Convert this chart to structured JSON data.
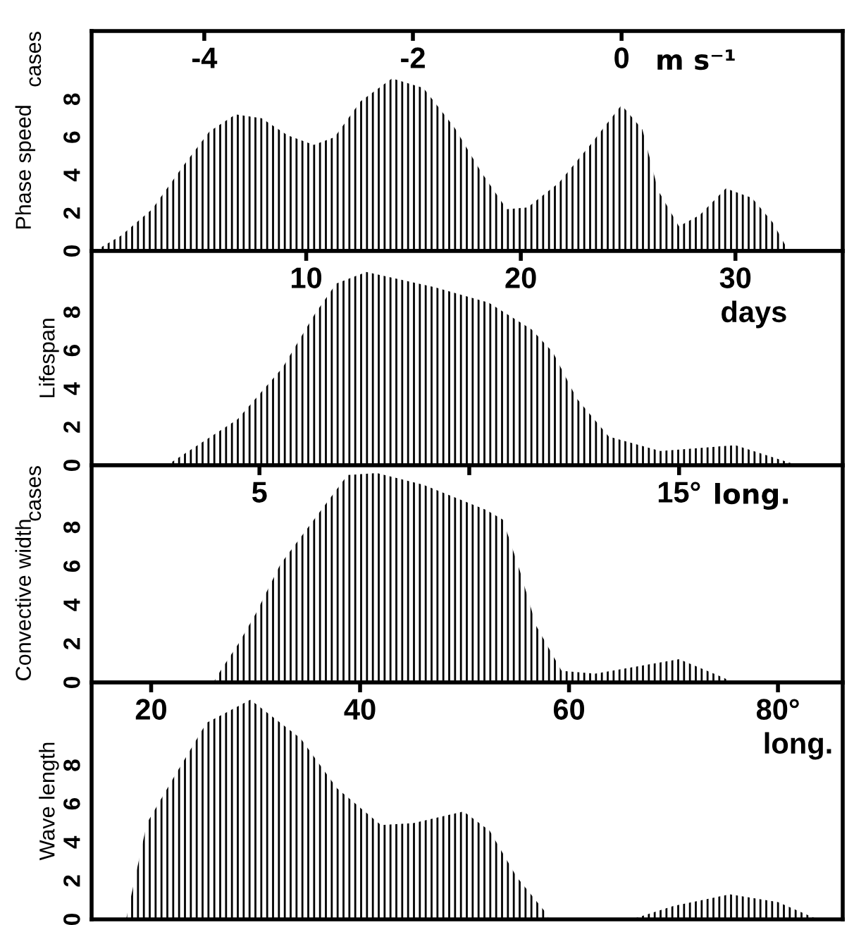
{
  "chart_data": [
    {
      "type": "area",
      "ylabel": "Phase speed",
      "annotations": [
        "cases",
        "m s⁻¹"
      ],
      "xlim": [
        -5.08,
        2.12
      ],
      "ylim": [
        0,
        11.6
      ],
      "xticks": [
        -4,
        -2,
        0
      ],
      "yticks": [
        0,
        2,
        4,
        6,
        8
      ],
      "color": "#000000",
      "x": [
        -5.05,
        -4.8,
        -4.5,
        -4.2,
        -3.95,
        -3.7,
        -3.45,
        -3.2,
        -2.95,
        -2.75,
        -2.5,
        -2.2,
        -1.9,
        -1.6,
        -1.35,
        -1.1,
        -0.9,
        -0.6,
        -0.3,
        0,
        0.2,
        0.35,
        0.55,
        0.75,
        1.0,
        1.25,
        1.45,
        1.6
      ],
      "values": [
        0,
        0.8,
        2.2,
        4.5,
        6.3,
        7.2,
        7.0,
        6.1,
        5.6,
        6.0,
        7.9,
        9.1,
        8.6,
        6.5,
        4.2,
        2.2,
        2.3,
        3.6,
        5.6,
        7.7,
        6.4,
        3.2,
        1.3,
        1.9,
        3.3,
        2.8,
        1.5,
        0
      ]
    },
    {
      "type": "area",
      "ylabel": "Lifespan",
      "annotations": [
        "days"
      ],
      "xlim": [
        0,
        35
      ],
      "ylim": [
        0,
        11.2
      ],
      "xticks": [
        10,
        20,
        30
      ],
      "yticks": [
        0,
        2,
        4,
        6,
        8
      ],
      "color": "#000000",
      "x": [
        3.5,
        6.8,
        8.9,
        10.4,
        11.4,
        12.8,
        16.0,
        18.5,
        20.5,
        21.5,
        22.6,
        24.1,
        26.5,
        30.0,
        32.9
      ],
      "values": [
        0,
        2.4,
        5.1,
        7.9,
        9.5,
        10.1,
        9.3,
        8.5,
        7.1,
        5.9,
        3.5,
        1.5,
        0.75,
        1.05,
        0
      ]
    },
    {
      "type": "area",
      "ylabel": "Convective width",
      "annotations": [
        "cases",
        "long."
      ],
      "xlim": [
        1.0,
        18.9
      ],
      "ylim": [
        0,
        11.2
      ],
      "xticks": [
        5,
        {
          "value": 10,
          "label": null
        },
        {
          "value": 15,
          "label": "15°"
        }
      ],
      "yticks": [
        0,
        2,
        4,
        6,
        8
      ],
      "color": "#000000",
      "x": [
        3.9,
        4.1,
        4.5,
        4.9,
        5.5,
        6.3,
        7.1,
        7.8,
        8.9,
        10.4,
        10.8,
        11.2,
        11.6,
        12.2,
        13.0,
        15.0,
        16.0,
        16.3
      ],
      "values": [
        0,
        0.7,
        2.0,
        3.5,
        6.1,
        8.4,
        10.7,
        10.8,
        10.2,
        8.9,
        8.4,
        5.8,
        2.9,
        0.6,
        0.45,
        1.2,
        0.3,
        0
      ]
    },
    {
      "type": "area",
      "ylabel": "Wave length",
      "annotations": [
        "long."
      ],
      "xlim": [
        14.3,
        86.2
      ],
      "ylim": [
        0,
        12.3
      ],
      "xticks": [
        20,
        40,
        60,
        {
          "value": 80,
          "label": "80°"
        }
      ],
      "yticks": [
        0,
        2,
        4,
        6,
        8
      ],
      "color": "#000000",
      "x": [
        17.6,
        18.8,
        19.6,
        22.2,
        25.3,
        29.5,
        34.3,
        37.8,
        42.0,
        45.1,
        49.9,
        52.4,
        55.0,
        57.7,
        58.1,
        66.0,
        70.0,
        75.4,
        80.0,
        83.8
      ],
      "values": [
        0,
        3.0,
        5.0,
        7.4,
        10.2,
        11.4,
        9.4,
        6.8,
        4.9,
        5.0,
        5.6,
        4.6,
        2.2,
        0.4,
        0,
        0,
        0.7,
        1.3,
        0.9,
        0
      ]
    }
  ]
}
